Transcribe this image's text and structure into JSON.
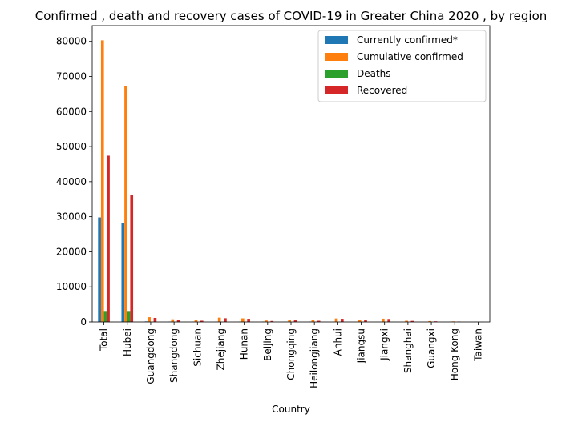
{
  "chart_data": {
    "type": "bar",
    "title": "Confirmed , death and recovery cases of COVID-19 in Greater China 2020 , by region",
    "xlabel": "Country",
    "ylabel": "",
    "ylim": [
      0,
      84500
    ],
    "yticks": [
      0,
      10000,
      20000,
      30000,
      40000,
      50000,
      60000,
      70000,
      80000
    ],
    "ytick_labels": [
      "0",
      "10000",
      "20000",
      "30000",
      "40000",
      "50000",
      "60000",
      "70000",
      "80000"
    ],
    "grid": false,
    "legend_position": "top-right",
    "categories": [
      "Total",
      "Hubei",
      "Guangdong",
      "Shangdong",
      "Sichuan",
      "Zhejiang",
      "Hunan",
      "Beijing",
      "Chongqing",
      "Heilongjiang",
      "Anhui",
      "Jiangsu",
      "Jiangxi",
      "Shanghai",
      "Guangxi",
      "Hong Kong",
      "Taiwan"
    ],
    "series": [
      {
        "name": "Currently confirmed*",
        "color": "#1f77b4",
        "values": [
          29800,
          28300,
          150,
          80,
          60,
          80,
          60,
          110,
          50,
          90,
          30,
          30,
          20,
          30,
          20,
          40,
          10
        ]
      },
      {
        "name": "Cumulative confirmed",
        "color": "#ff7f0e",
        "values": [
          80300,
          67300,
          1350,
          760,
          540,
          1220,
          1020,
          420,
          580,
          480,
          990,
          630,
          935,
          340,
          250,
          160,
          50
        ]
      },
      {
        "name": "Deaths",
        "color": "#2ca02c",
        "values": [
          2900,
          2900,
          10,
          10,
          5,
          5,
          10,
          10,
          10,
          15,
          10,
          5,
          5,
          5,
          5,
          5,
          5
        ]
      },
      {
        "name": "Recovered",
        "color": "#d62728",
        "values": [
          47400,
          36200,
          1150,
          500,
          350,
          1050,
          900,
          280,
          450,
          340,
          900,
          550,
          850,
          300,
          180,
          110,
          30
        ]
      }
    ]
  }
}
